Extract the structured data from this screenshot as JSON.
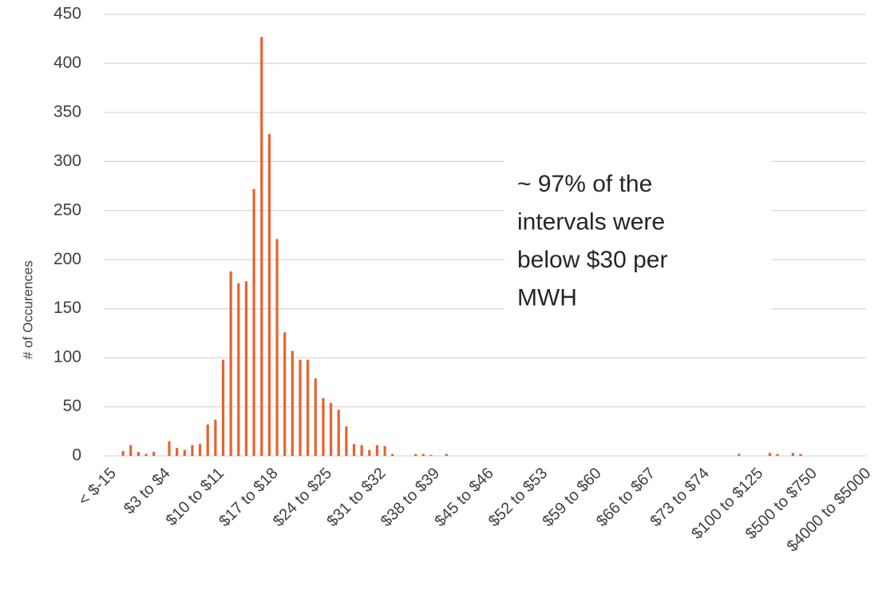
{
  "chart_data": {
    "type": "bar",
    "y_axis_label": "# of Occurences",
    "annotation": [
      "~ 97% of the",
      "intervals were",
      "below $30 per",
      "MWH"
    ],
    "categories": [
      "< $-15",
      null,
      null,
      null,
      null,
      null,
      null,
      "$3 to $4",
      null,
      null,
      null,
      null,
      null,
      null,
      "$10 to $11",
      null,
      null,
      null,
      null,
      null,
      null,
      "$17 to $18",
      null,
      null,
      null,
      null,
      null,
      null,
      "$24 to $25",
      null,
      null,
      null,
      null,
      null,
      null,
      "$31 to $32",
      null,
      null,
      null,
      null,
      null,
      null,
      "$38 to $39",
      null,
      null,
      null,
      null,
      null,
      null,
      "$45 to $46",
      null,
      null,
      null,
      null,
      null,
      null,
      "$52 to $53",
      null,
      null,
      null,
      null,
      null,
      null,
      "$59 to $60",
      null,
      null,
      null,
      null,
      null,
      null,
      "$66 to $67",
      null,
      null,
      null,
      null,
      null,
      null,
      "$73 to $74",
      null,
      null,
      null,
      null,
      null,
      null,
      "$100 to $125",
      null,
      null,
      null,
      null,
      null,
      null,
      "$500 to $750",
      null,
      null,
      null,
      null,
      null,
      null,
      "$4000 to $5000"
    ],
    "values": [
      0,
      0,
      5,
      11,
      4,
      2,
      4,
      0,
      15,
      8,
      6,
      11,
      12,
      32,
      37,
      98,
      188,
      176,
      178,
      272,
      427,
      328,
      221,
      126,
      107,
      98,
      98,
      79,
      59,
      54,
      47,
      30,
      12,
      11,
      6,
      11,
      10,
      2,
      0,
      0,
      2,
      2,
      1,
      0,
      2,
      0,
      0,
      0,
      0,
      0,
      0,
      0,
      0,
      0,
      0,
      0,
      0,
      0,
      0,
      0,
      0,
      0,
      0,
      0,
      0,
      0,
      0,
      0,
      0,
      0,
      0,
      0,
      0,
      0,
      0,
      0,
      0,
      0,
      0,
      0,
      0,
      0,
      2,
      0,
      0,
      0,
      3,
      2,
      0,
      3,
      2,
      0,
      0,
      0,
      0,
      0,
      0,
      0,
      0
    ],
    "color": "#e8622c",
    "ylim": [
      0,
      450
    ],
    "yticks": [
      0,
      50,
      100,
      150,
      200,
      250,
      300,
      350,
      400,
      450
    ],
    "grid": true
  }
}
